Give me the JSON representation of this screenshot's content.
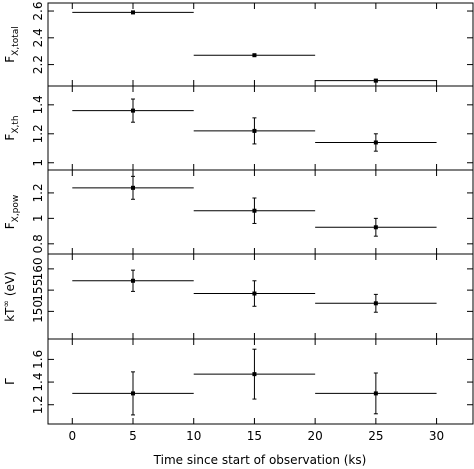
{
  "chart_data": {
    "type": "scatter",
    "xlabel": "Time since start of observation (ks)",
    "xlim": [
      -2,
      33
    ],
    "xticks": [
      "0",
      "5",
      "10",
      "15",
      "20",
      "25",
      "30"
    ],
    "xtick_values": [
      0,
      5,
      10,
      15,
      20,
      25,
      30
    ],
    "panels": [
      {
        "id": "ftotal",
        "ylabel_main": "F",
        "ylabel_sub": "X,total",
        "ylabel_sup": "",
        "ylabel_unit": "",
        "ylim": [
          2.04,
          2.66
        ],
        "yticks": [
          "2.2",
          "2.4",
          "2.6"
        ],
        "ytick_values": [
          2.2,
          2.4,
          2.6
        ],
        "points": [
          {
            "x": 5,
            "xerr": 5,
            "y": 2.59,
            "yerr": 0.01
          },
          {
            "x": 15,
            "xerr": 5,
            "y": 2.27,
            "yerr": 0.005
          },
          {
            "x": 25,
            "xerr": 5,
            "y": 2.08,
            "yerr": 0.01
          }
        ]
      },
      {
        "id": "fth",
        "ylabel_main": "F",
        "ylabel_sub": "X,th",
        "ylabel_sup": "",
        "ylabel_unit": "",
        "ylim": [
          0.95,
          1.53
        ],
        "yticks": [
          "1",
          "1.2",
          "1.4"
        ],
        "ytick_values": [
          1.0,
          1.2,
          1.4
        ],
        "points": [
          {
            "x": 5,
            "xerr": 5,
            "y": 1.36,
            "yerr": 0.08
          },
          {
            "x": 15,
            "xerr": 5,
            "y": 1.22,
            "yerr": 0.09
          },
          {
            "x": 25,
            "xerr": 5,
            "y": 1.14,
            "yerr": 0.06
          }
        ]
      },
      {
        "id": "fpow",
        "ylabel_main": "F",
        "ylabel_sub": "X,pow",
        "ylabel_sup": "",
        "ylabel_unit": "",
        "ylim": [
          0.72,
          1.38
        ],
        "yticks": [
          "0.8",
          "1",
          "1.2"
        ],
        "ytick_values": [
          0.8,
          1.0,
          1.2
        ],
        "points": [
          {
            "x": 5,
            "xerr": 5,
            "y": 1.24,
            "yerr": 0.09
          },
          {
            "x": 15,
            "xerr": 5,
            "y": 1.06,
            "yerr": 0.1
          },
          {
            "x": 25,
            "xerr": 5,
            "y": 0.93,
            "yerr": 0.07
          }
        ]
      },
      {
        "id": "kt",
        "ylabel_main": "kT",
        "ylabel_sub": "",
        "ylabel_sup": "∞",
        "ylabel_unit": " (eV)",
        "ylim": [
          143.5,
          163.5
        ],
        "yticks": [
          "150",
          "155",
          "160"
        ],
        "ytick_values": [
          150,
          155,
          160
        ],
        "points": [
          {
            "x": 5,
            "xerr": 5,
            "y": 157.2,
            "yerr": 2.5
          },
          {
            "x": 15,
            "xerr": 5,
            "y": 154.2,
            "yerr": 3.0
          },
          {
            "x": 25,
            "xerr": 5,
            "y": 151.9,
            "yerr": 2.1
          }
        ]
      },
      {
        "id": "gamma",
        "ylabel_main": "Γ",
        "ylabel_sub": "",
        "ylabel_sup": "",
        "ylabel_unit": "",
        "ylim": [
          1.03,
          1.78
        ],
        "yticks": [
          "1.2",
          "1.4",
          "1.6"
        ],
        "ytick_values": [
          1.2,
          1.4,
          1.6
        ],
        "points": [
          {
            "x": 5,
            "xerr": 5,
            "y": 1.3,
            "yerr": 0.19
          },
          {
            "x": 15,
            "xerr": 5,
            "y": 1.47,
            "yerr": 0.22
          },
          {
            "x": 25,
            "xerr": 5,
            "y": 1.3,
            "yerr": 0.18
          }
        ]
      }
    ]
  }
}
